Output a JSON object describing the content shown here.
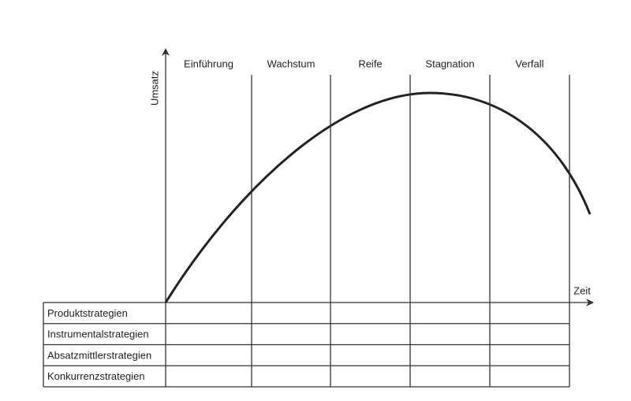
{
  "y_axis_label": "Umsatz",
  "x_axis_label": "Zeit",
  "phases": [
    "Einführung",
    "Wachstum",
    "Reife",
    "Stagnation",
    "Verfall"
  ],
  "strategies": [
    "Produktstrategien",
    "Instrumentalstrategien",
    "Absatzmittlerstrategien",
    "Konkurrenzstrategien"
  ]
}
